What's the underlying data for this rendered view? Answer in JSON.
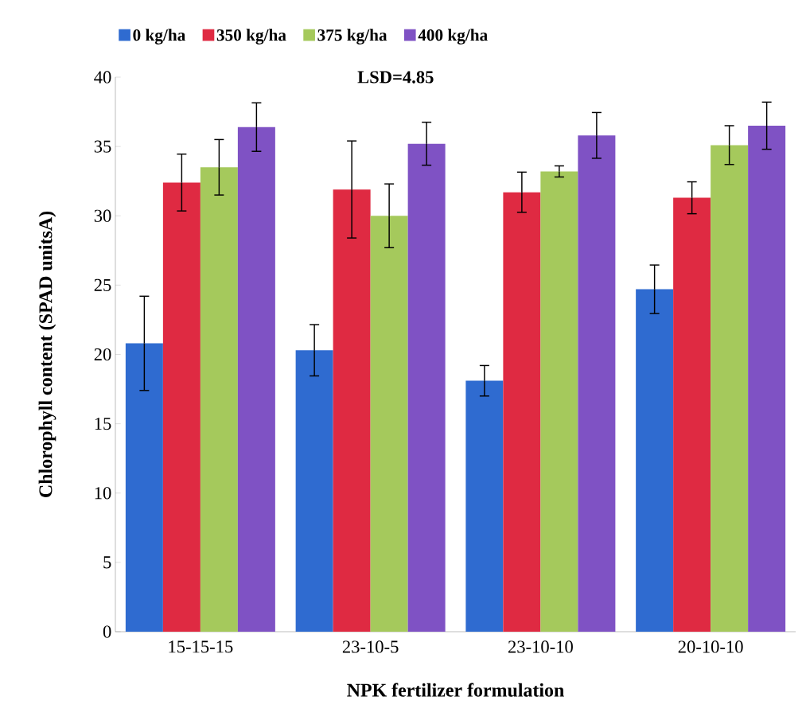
{
  "chart_data": {
    "type": "bar",
    "xlabel": "NPK fertilizer formulation",
    "ylabel": "Chlorophyll content (SPAD unitsA)",
    "categories": [
      "15-15-15",
      "23-10-5",
      "23-10-10",
      "20-10-10"
    ],
    "series": [
      {
        "name": "0 kg/ha",
        "color": "#2f6bd0",
        "values": [
          20.8,
          20.3,
          18.1,
          24.7
        ],
        "errors": [
          3.4,
          1.85,
          1.1,
          1.75
        ]
      },
      {
        "name": "350 kg/ha",
        "color": "#df2a42",
        "values": [
          32.4,
          31.9,
          31.7,
          31.3
        ],
        "errors": [
          2.05,
          3.5,
          1.45,
          1.15
        ]
      },
      {
        "name": "375 kg/ha",
        "color": "#a5c95c",
        "values": [
          33.5,
          30.0,
          33.2,
          35.1
        ],
        "errors": [
          2.0,
          2.3,
          0.4,
          1.4
        ]
      },
      {
        "name": "400 kg/ha",
        "color": "#7f52c4",
        "values": [
          36.4,
          35.2,
          35.8,
          36.5
        ],
        "errors": [
          1.75,
          1.55,
          1.65,
          1.7
        ]
      }
    ],
    "ylim": [
      0,
      40
    ],
    "yticks": [
      0,
      5,
      10,
      15,
      20,
      25,
      30,
      35,
      40
    ],
    "legend": "top",
    "grid": false,
    "annotations": [
      "LSD=4.85"
    ]
  }
}
